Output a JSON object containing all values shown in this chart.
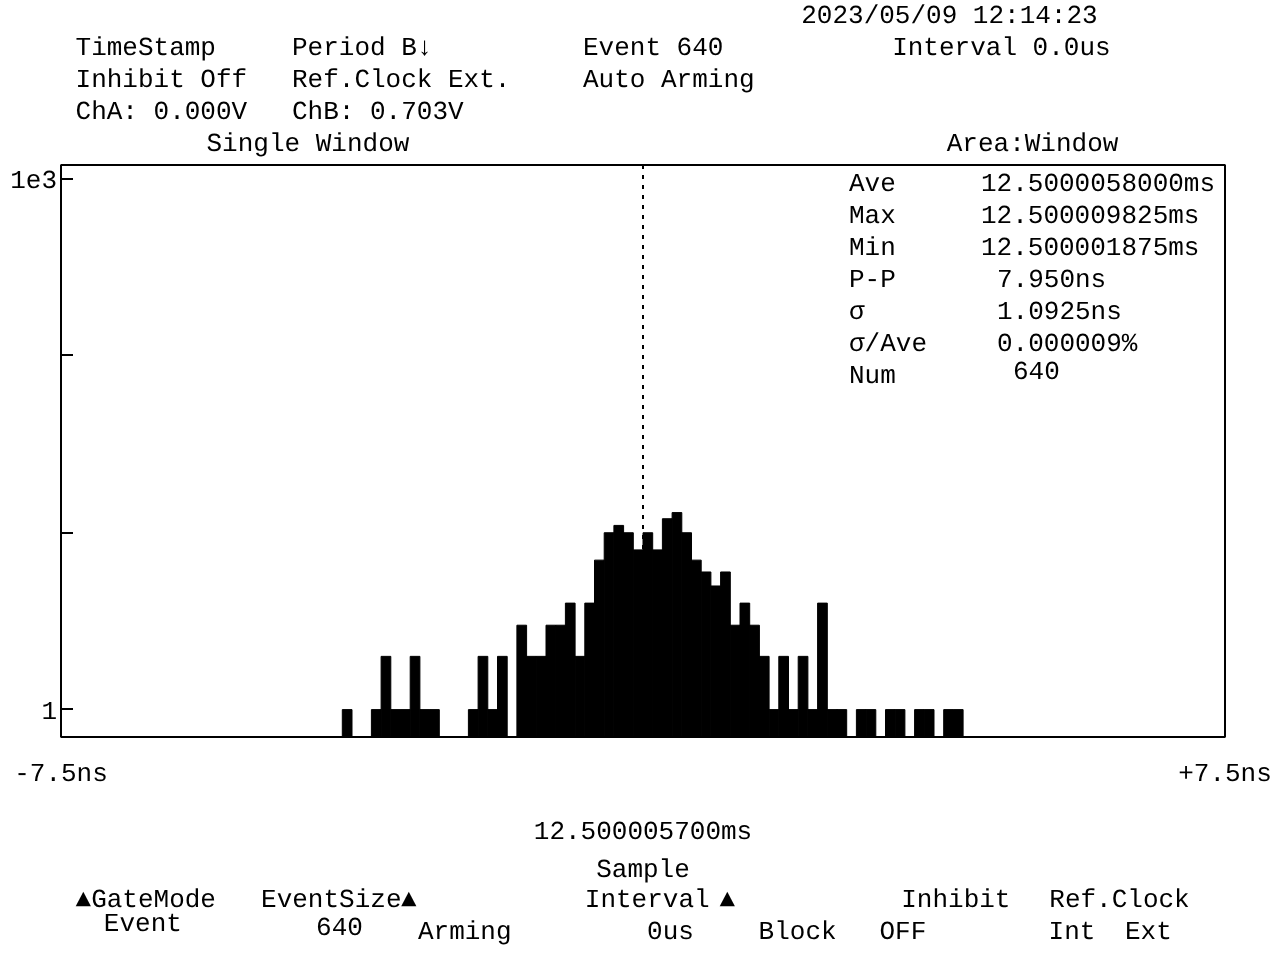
{
  "chart_data": {
    "type": "histogram",
    "title": "Single Window",
    "bins": [
      -3.875,
      -3.75,
      -3.625,
      -3.5,
      -3.375,
      -3.25,
      -3.125,
      -3.0,
      -2.875,
      -2.75,
      -2.625,
      -2.5,
      -2.375,
      -2.25,
      -2.125,
      -2.0,
      -1.875,
      -1.75,
      -1.625,
      -1.5,
      -1.375,
      -1.25,
      -1.125,
      -1.0,
      -0.875,
      -0.75,
      -0.625,
      -0.5,
      -0.375,
      -0.25,
      -0.125,
      0,
      0.125,
      0.25,
      0.375,
      0.5,
      0.625,
      0.75,
      0.875,
      1.0,
      1.125,
      1.25,
      1.375,
      1.5,
      1.625,
      1.75,
      1.875,
      2.0,
      2.125,
      2.25,
      2.375,
      2.5,
      2.625,
      2.75,
      2.875,
      3.0,
      3.125,
      3.25,
      3.375,
      3.5,
      3.625,
      3.75,
      3.875,
      4.0,
      4.125
    ],
    "values": [
      1,
      null,
      null,
      1,
      2,
      1,
      1,
      2,
      1,
      1,
      null,
      null,
      null,
      1,
      2,
      1,
      2,
      null,
      3,
      2,
      2,
      3,
      3,
      4,
      2,
      4,
      7,
      10,
      11,
      10,
      8,
      10,
      8,
      12,
      13,
      10,
      7,
      6,
      5,
      6,
      3,
      4,
      3,
      2,
      1,
      2,
      1,
      2,
      1,
      4,
      1,
      1,
      null,
      1,
      1,
      null,
      1,
      1,
      null,
      1,
      1,
      null,
      1,
      1
    ],
    "color": "#000000",
    "log": "y",
    "xlim": [
      -7.5,
      7.5
    ],
    "xticks": [
      {
        "value": -7.5,
        "label": "-7.5ns"
      },
      {
        "value": 7.5,
        "label": "+7.5ns"
      }
    ],
    "ylim": [
      0.7,
      1200
    ],
    "yticks": [
      {
        "value": 1,
        "label": "1"
      },
      {
        "value": 10,
        "label": null
      },
      {
        "value": 100,
        "label": null
      },
      {
        "value": 1000,
        "label": "1e3"
      }
    ],
    "grid": false,
    "ref_lines": [
      {
        "axis": "x",
        "value": 0,
        "label": "12.500005700ms",
        "line_style": "dotted"
      }
    ],
    "annotations": [
      "2023/05/09 12:14:23",
      "TimeStamp",
      "Period B↓",
      "Event 640",
      "Interval 0.0us",
      "Inhibit Off",
      "Ref.Clock Ext.",
      "Auto Arming",
      "ChA:  0.000V",
      "ChB:  0.703V",
      "Area:Window",
      "Ave",
      "12.5000058000ms",
      "Max",
      "12.500009825ms",
      "Min",
      "12.500001875ms",
      "P-P",
      "7.950ns",
      "σ",
      "1.0925ns",
      "σ/Ave",
      "0.000009%",
      "Num",
      "640",
      "Sample",
      "▲GateMode",
      "Event",
      "EventSize",
      "640",
      "▲",
      "Arming",
      "Interval",
      "0us",
      "▲",
      "Block",
      "Inhibit",
      "OFF",
      "Ref.Clock",
      "Int",
      "Ext"
    ]
  }
}
